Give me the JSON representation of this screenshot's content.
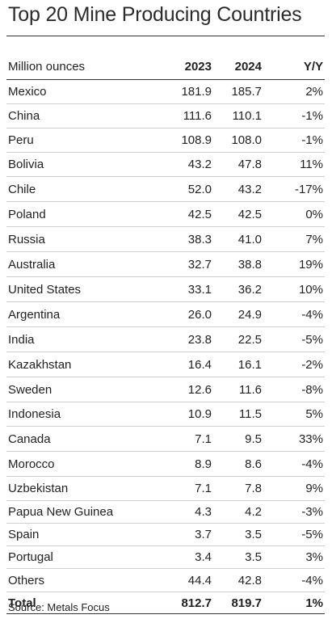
{
  "title": "Top 20 Mine Producing Countries",
  "source": "Source: Metals Focus",
  "chart_data": {
    "type": "table",
    "title": "Top 20 Mine Producing Countries",
    "columns": [
      "Million ounces",
      "2023",
      "2024",
      "Y/Y"
    ],
    "rows": [
      {
        "country": "Mexico",
        "y2023": "181.9",
        "y2024": "185.7",
        "yoy": "2%"
      },
      {
        "country": "China",
        "y2023": "111.6",
        "y2024": "110.1",
        "yoy": "-1%"
      },
      {
        "country": "Peru",
        "y2023": "108.9",
        "y2024": "108.0",
        "yoy": "-1%"
      },
      {
        "country": "Bolivia",
        "y2023": "43.2",
        "y2024": "47.8",
        "yoy": "11%"
      },
      {
        "country": "Chile",
        "y2023": "52.0",
        "y2024": "43.2",
        "yoy": "-17%"
      },
      {
        "country": "Poland",
        "y2023": "42.5",
        "y2024": "42.5",
        "yoy": "0%"
      },
      {
        "country": "Russia",
        "y2023": "38.3",
        "y2024": "41.0",
        "yoy": "7%"
      },
      {
        "country": "Australia",
        "y2023": "32.7",
        "y2024": "38.8",
        "yoy": "19%"
      },
      {
        "country": "United States",
        "y2023": "33.1",
        "y2024": "36.2",
        "yoy": "10%"
      },
      {
        "country": "Argentina",
        "y2023": "26.0",
        "y2024": "24.9",
        "yoy": "-4%"
      },
      {
        "country": "India",
        "y2023": "23.8",
        "y2024": "22.5",
        "yoy": "-5%"
      },
      {
        "country": "Kazakhstan",
        "y2023": "16.4",
        "y2024": "16.1",
        "yoy": "-2%"
      },
      {
        "country": "Sweden",
        "y2023": "12.6",
        "y2024": "11.6",
        "yoy": "-8%"
      },
      {
        "country": "Indonesia",
        "y2023": "10.9",
        "y2024": "11.5",
        "yoy": "5%"
      },
      {
        "country": "Canada",
        "y2023": "7.1",
        "y2024": "9.5",
        "yoy": "33%"
      },
      {
        "country": "Morocco",
        "y2023": "8.9",
        "y2024": "8.6",
        "yoy": "-4%"
      },
      {
        "country": "Uzbekistan",
        "y2023": "7.1",
        "y2024": "7.8",
        "yoy": "9%"
      },
      {
        "country": "Papua New Guinea",
        "y2023": "4.3",
        "y2024": "4.2",
        "yoy": "-3%"
      },
      {
        "country": "Spain",
        "y2023": "3.7",
        "y2024": "3.5",
        "yoy": "-5%"
      },
      {
        "country": "Portugal",
        "y2023": "3.4",
        "y2024": "3.5",
        "yoy": "3%"
      },
      {
        "country": "Others",
        "y2023": "44.4",
        "y2024": "42.8",
        "yoy": "-4%"
      }
    ],
    "total": {
      "label": "Total",
      "y2023": "812.7",
      "y2024": "819.7",
      "yoy": "1%"
    }
  }
}
